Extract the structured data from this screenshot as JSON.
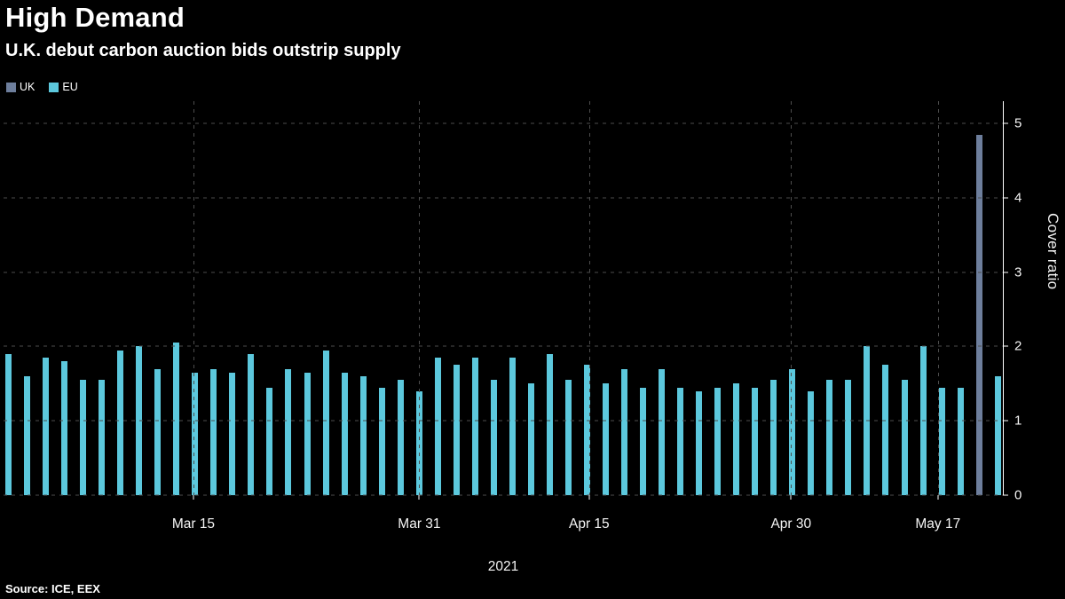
{
  "header": {
    "title": "High Demand",
    "subtitle": "U.K. debut carbon auction bids outstrip supply"
  },
  "legend": [
    {
      "label": "UK",
      "color": "#6d7e9c"
    },
    {
      "label": "EU",
      "color": "#5cc8dd"
    }
  ],
  "footer": {
    "source": "Source: ICE, EEX",
    "x_axis_year": "2021"
  },
  "chart_data": {
    "type": "bar",
    "title": "High Demand",
    "subtitle": "U.K. debut carbon auction bids outstrip supply",
    "xlabel": "2021",
    "ylabel": "Cover ratio",
    "ylim": [
      0,
      5
    ],
    "ymax_render": 5.3,
    "grid": "dashed",
    "legend_position": "top-left",
    "y_ticks": [
      0,
      1,
      2,
      3,
      4,
      5
    ],
    "x_ticks": [
      {
        "label": "Mar 15",
        "pos": 0.19
      },
      {
        "label": "Mar 31",
        "pos": 0.416
      },
      {
        "label": "Apr 15",
        "pos": 0.586
      },
      {
        "label": "Apr 30",
        "pos": 0.788
      },
      {
        "label": "May 17",
        "pos": 0.935
      }
    ],
    "series_colors": {
      "UK": "#6d7e9c",
      "EU": "#5cc8dd"
    },
    "bars": [
      {
        "series": "EU",
        "value": 1.9
      },
      {
        "series": "EU",
        "value": 1.6
      },
      {
        "series": "EU",
        "value": 1.85
      },
      {
        "series": "EU",
        "value": 1.8
      },
      {
        "series": "EU",
        "value": 1.55
      },
      {
        "series": "EU",
        "value": 1.55
      },
      {
        "series": "EU",
        "value": 1.95
      },
      {
        "series": "EU",
        "value": 2.0
      },
      {
        "series": "EU",
        "value": 1.7
      },
      {
        "series": "EU",
        "value": 2.05
      },
      {
        "series": "EU",
        "value": 1.65
      },
      {
        "series": "EU",
        "value": 1.7
      },
      {
        "series": "EU",
        "value": 1.65
      },
      {
        "series": "EU",
        "value": 1.9
      },
      {
        "series": "EU",
        "value": 1.45
      },
      {
        "series": "EU",
        "value": 1.7
      },
      {
        "series": "EU",
        "value": 1.65
      },
      {
        "series": "EU",
        "value": 1.95
      },
      {
        "series": "EU",
        "value": 1.65
      },
      {
        "series": "EU",
        "value": 1.6
      },
      {
        "series": "EU",
        "value": 1.45
      },
      {
        "series": "EU",
        "value": 1.55
      },
      {
        "series": "EU",
        "value": 1.4
      },
      {
        "series": "EU",
        "value": 1.85
      },
      {
        "series": "EU",
        "value": 1.75
      },
      {
        "series": "EU",
        "value": 1.85
      },
      {
        "series": "EU",
        "value": 1.55
      },
      {
        "series": "EU",
        "value": 1.85
      },
      {
        "series": "EU",
        "value": 1.5
      },
      {
        "series": "EU",
        "value": 1.9
      },
      {
        "series": "EU",
        "value": 1.55
      },
      {
        "series": "EU",
        "value": 1.75
      },
      {
        "series": "EU",
        "value": 1.5
      },
      {
        "series": "EU",
        "value": 1.7
      },
      {
        "series": "EU",
        "value": 1.45
      },
      {
        "series": "EU",
        "value": 1.7
      },
      {
        "series": "EU",
        "value": 1.45
      },
      {
        "series": "EU",
        "value": 1.4
      },
      {
        "series": "EU",
        "value": 1.45
      },
      {
        "series": "EU",
        "value": 1.5
      },
      {
        "series": "EU",
        "value": 1.45
      },
      {
        "series": "EU",
        "value": 1.55
      },
      {
        "series": "EU",
        "value": 1.7
      },
      {
        "series": "EU",
        "value": 1.4
      },
      {
        "series": "EU",
        "value": 1.55
      },
      {
        "series": "EU",
        "value": 1.55
      },
      {
        "series": "EU",
        "value": 2.0
      },
      {
        "series": "EU",
        "value": 1.75
      },
      {
        "series": "EU",
        "value": 1.55
      },
      {
        "series": "EU",
        "value": 2.0
      },
      {
        "series": "EU",
        "value": 1.45
      },
      {
        "series": "EU",
        "value": 1.45
      },
      {
        "series": "UK",
        "value": 4.85
      },
      {
        "series": "EU",
        "value": 1.6
      }
    ]
  }
}
